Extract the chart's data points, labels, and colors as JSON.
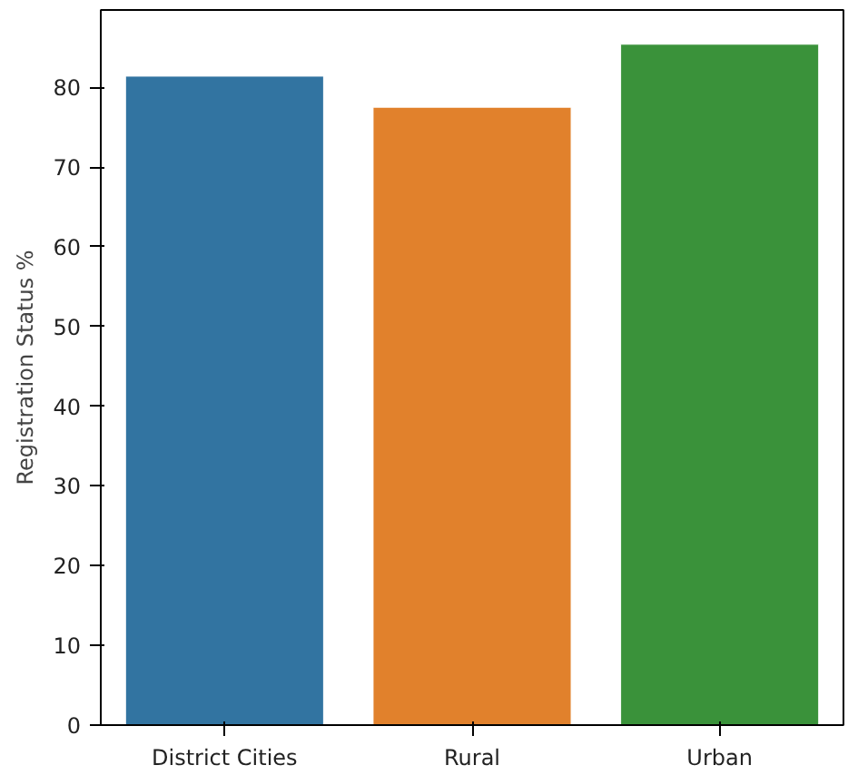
{
  "chart_data": {
    "type": "bar",
    "ylabel": "Registration Status %",
    "categories": [
      "District Cities",
      "Rural",
      "Urban"
    ],
    "values": [
      81.4,
      77.5,
      85.4
    ],
    "colors": [
      "#3274a1",
      "#e1812c",
      "#3a923a"
    ],
    "ylim": [
      0,
      89.7
    ],
    "yticks": [
      0,
      10,
      20,
      30,
      40,
      50,
      60,
      70,
      80
    ],
    "grid": false
  }
}
